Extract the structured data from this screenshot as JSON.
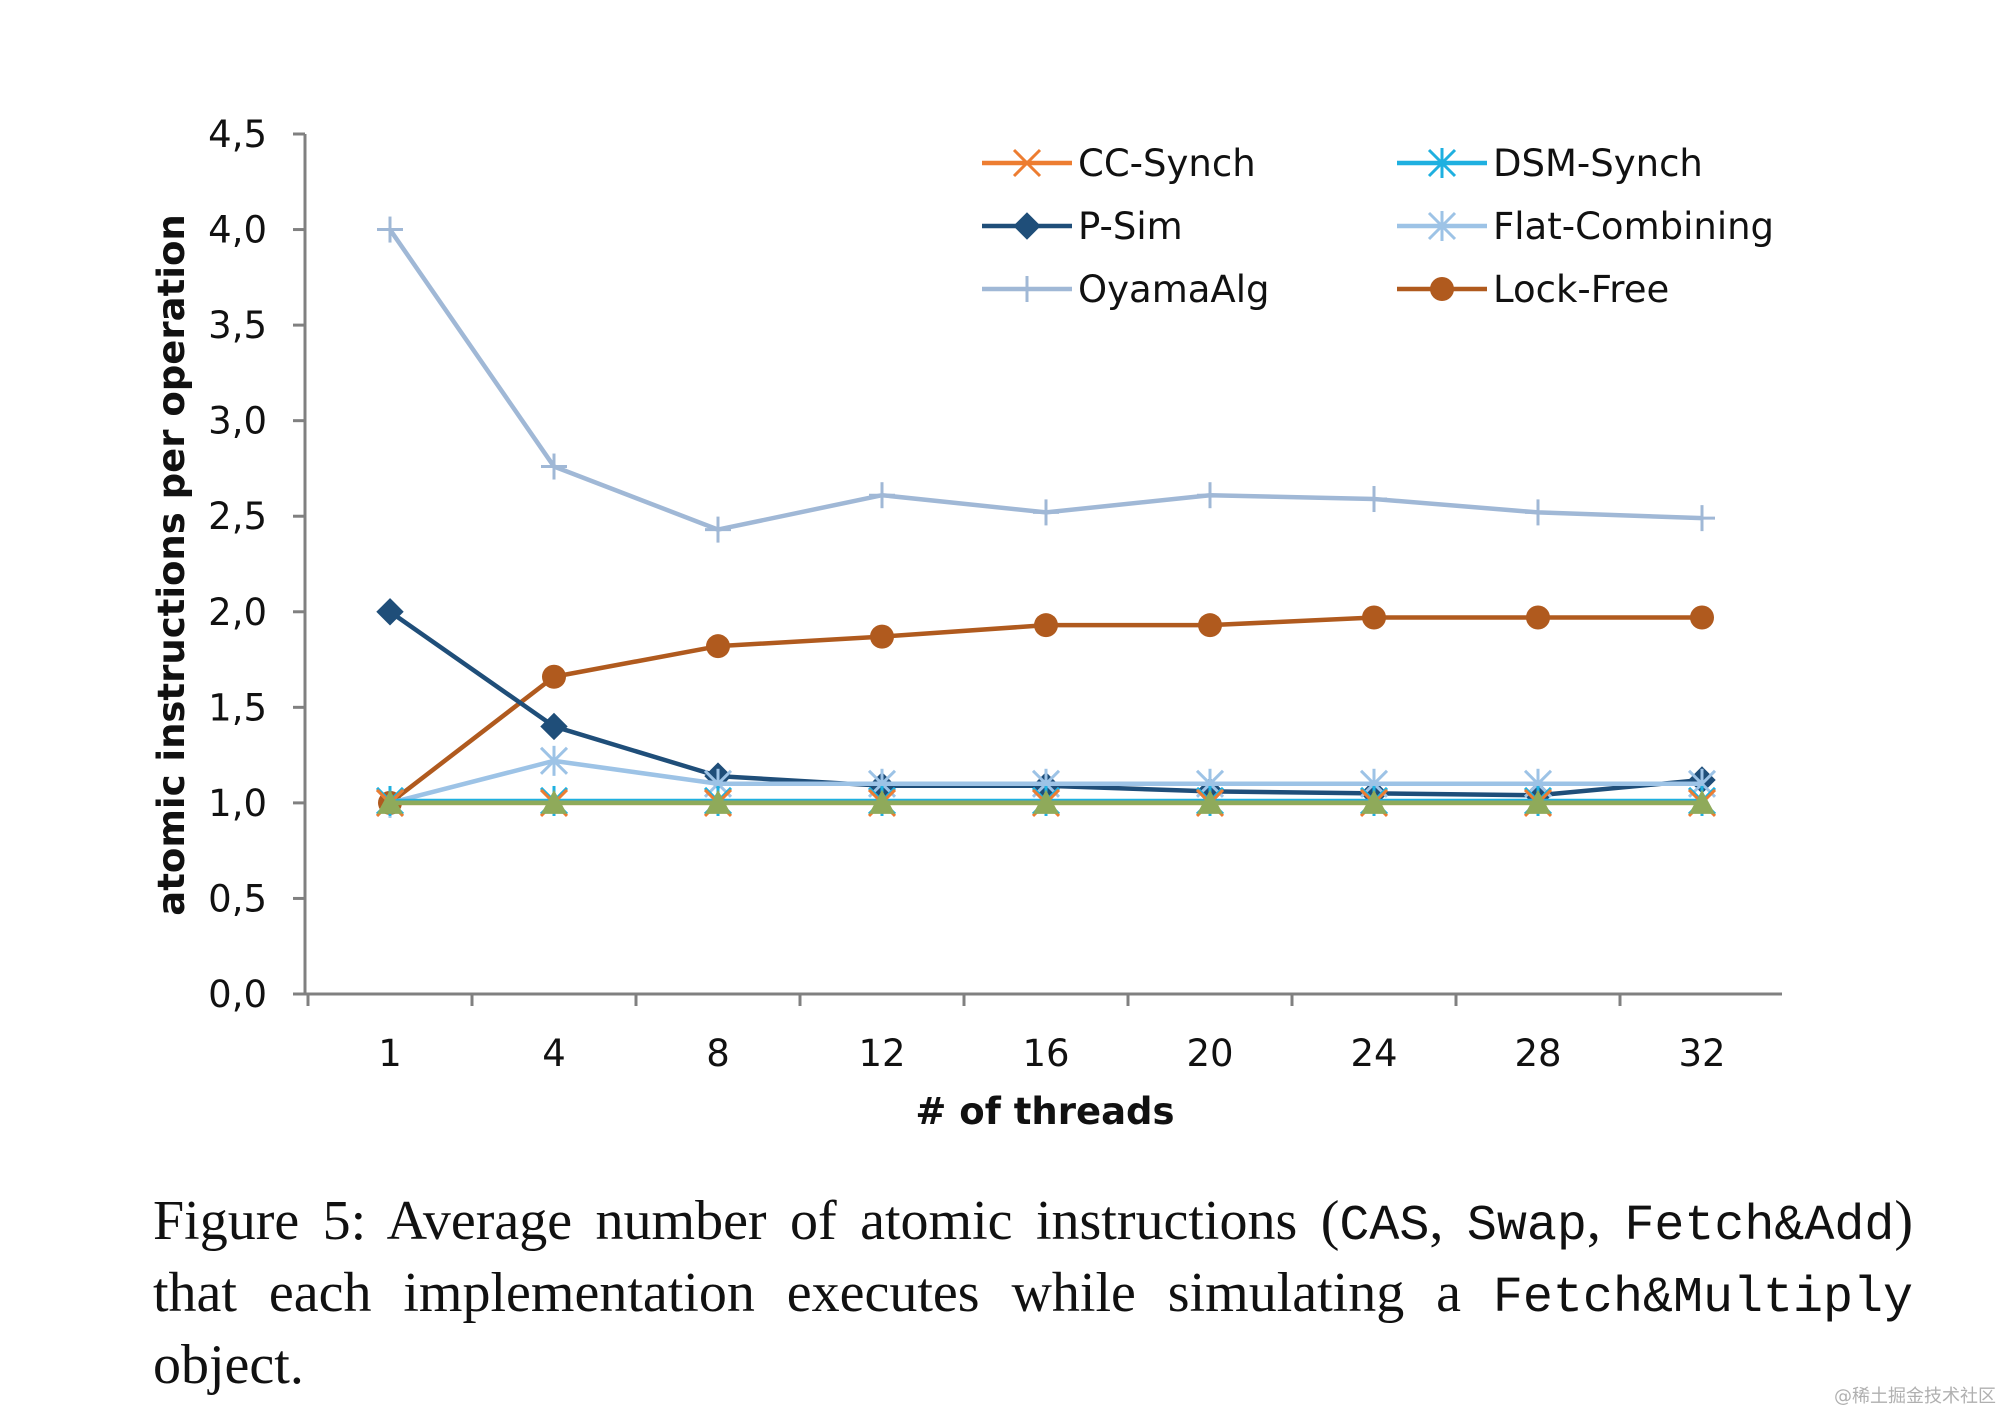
{
  "chart_data": {
    "type": "line",
    "title": "",
    "xlabel": "# of threads",
    "ylabel": "atomic instructions per operation",
    "categories": [
      "1",
      "4",
      "8",
      "12",
      "16",
      "20",
      "24",
      "28",
      "32"
    ],
    "ylim": [
      0,
      4.5
    ],
    "yticks": [
      "0,0",
      "0,5",
      "1,0",
      "1,5",
      "2,0",
      "2,5",
      "3,0",
      "3,5",
      "4,0",
      "4,5"
    ],
    "yticks_values": [
      0,
      0.5,
      1.0,
      1.5,
      2.0,
      2.5,
      3.0,
      3.5,
      4.0,
      4.5
    ],
    "grid": false,
    "legend_position": "top-right",
    "series": [
      {
        "name": "CC-Synch",
        "color": "#ED7D31",
        "marker": "x",
        "values": [
          1.0,
          1.0,
          1.0,
          1.0,
          1.0,
          1.0,
          1.0,
          1.0,
          1.0
        ]
      },
      {
        "name": "DSM-Synch",
        "color": "#1FB0E0",
        "marker": "asterisk",
        "values": [
          1.01,
          1.01,
          1.01,
          1.01,
          1.01,
          1.01,
          1.01,
          1.01,
          1.01
        ]
      },
      {
        "name": "P-Sim",
        "color": "#1F4E79",
        "marker": "diamond",
        "values": [
          2.0,
          1.4,
          1.14,
          1.09,
          1.09,
          1.06,
          1.05,
          1.04,
          1.12
        ]
      },
      {
        "name": "Flat-Combining",
        "color": "#9DC3E6",
        "marker": "asterisk",
        "values": [
          1.0,
          1.22,
          1.1,
          1.1,
          1.1,
          1.1,
          1.1,
          1.1,
          1.1
        ]
      },
      {
        "name": "OyamaAlg",
        "color": "#A0B8D6",
        "marker": "plus",
        "values": [
          4.0,
          2.76,
          2.43,
          2.61,
          2.52,
          2.61,
          2.59,
          2.52,
          2.49
        ]
      },
      {
        "name": "Lock-Free",
        "color": "#B05A1E",
        "marker": "circle",
        "values": [
          1.0,
          1.66,
          1.82,
          1.87,
          1.93,
          1.93,
          1.97,
          1.97,
          1.97
        ]
      },
      {
        "name": "",
        "color": "#8FAA5A",
        "marker": "triangle",
        "in_legend": false,
        "values": [
          1.0,
          1.0,
          1.0,
          1.0,
          1.0,
          1.0,
          1.0,
          1.0,
          1.0
        ]
      }
    ]
  },
  "caption": {
    "prefix": "Figure 5: Average number of atomic instructions (",
    "code1": "CAS",
    "sep1": ", ",
    "code2": "Swap",
    "sep2": ", ",
    "code3": "Fetch&Add",
    "mid": ") that each implementation executes while simulating a ",
    "code4": "Fetch&Multiply",
    "suffix": " object."
  },
  "watermark": "@稀土掘金技术社区"
}
